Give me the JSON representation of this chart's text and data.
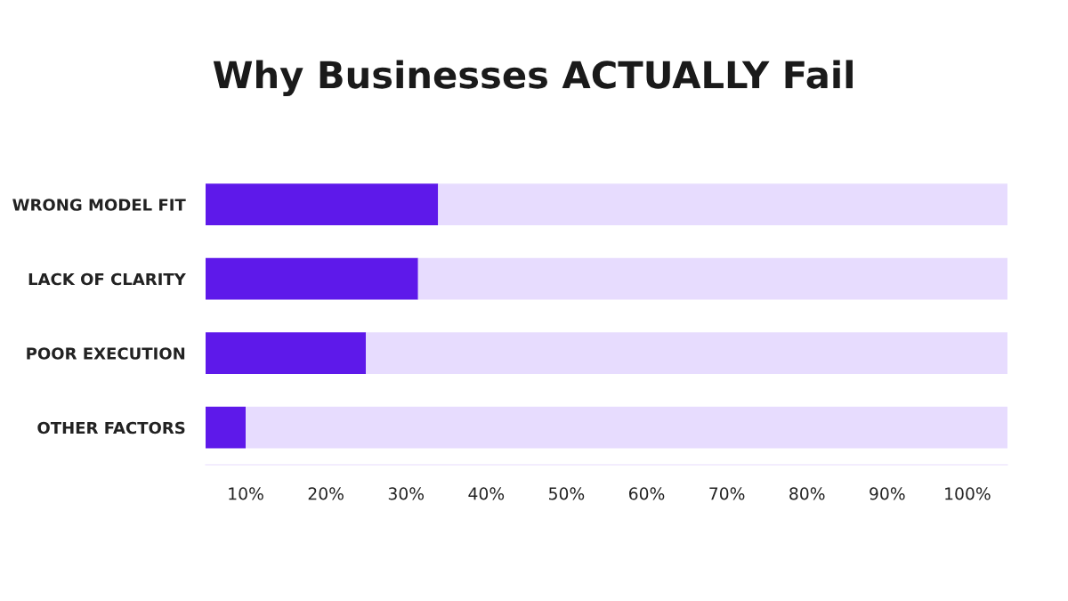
{
  "chart_data": {
    "type": "bar",
    "orientation": "horizontal",
    "title": "Why Businesses ACTUALLY Fail",
    "categories": [
      "WRONG MODEL FIT",
      "LACK OF CLARITY",
      "POOR EXECUTION",
      "OTHER FACTORS"
    ],
    "series": [
      {
        "color": "#5e19ea",
        "values": [
          34,
          31.5,
          25,
          10
        ]
      },
      {
        "color": "#e7dcfe",
        "values": [
          71,
          73.5,
          80,
          95
        ]
      }
    ],
    "stacked": true,
    "xlim": [
      5,
      105
    ],
    "xticks": [
      {
        "value": 10,
        "label": "10%"
      },
      {
        "value": 20,
        "label": "20%"
      },
      {
        "value": 30,
        "label": "30%"
      },
      {
        "value": 40,
        "label": "40%"
      },
      {
        "value": 50,
        "label": "50%"
      },
      {
        "value": 60,
        "label": "60%"
      },
      {
        "value": 70,
        "label": "70%"
      },
      {
        "value": 80,
        "label": "80%"
      },
      {
        "value": 90,
        "label": "90%"
      },
      {
        "value": 100,
        "label": "100%"
      }
    ],
    "grid": false
  }
}
